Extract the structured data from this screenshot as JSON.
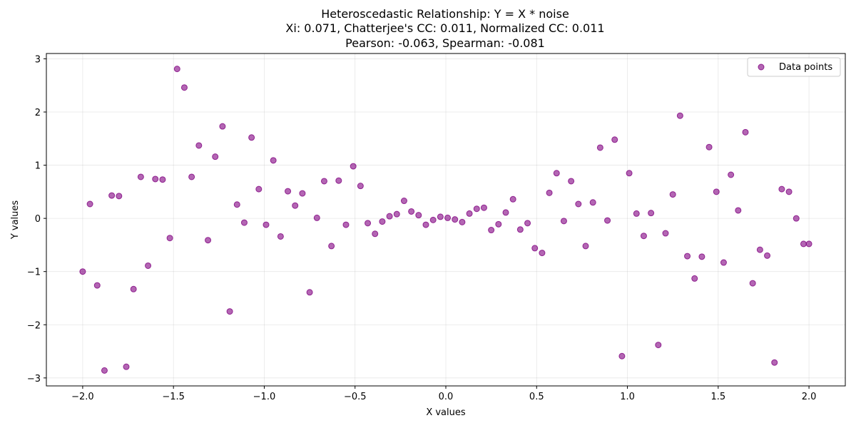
{
  "chart_data": {
    "type": "scatter",
    "title_lines": [
      "Heteroscedastic Relationship: Y = X * noise",
      "Xi: 0.071, Chatterjee's CC: 0.011, Normalized CC: 0.011",
      "Pearson: -0.063, Spearman: -0.081"
    ],
    "xlabel": "X values",
    "ylabel": "Y values",
    "xlim": [
      -2.2,
      2.2
    ],
    "ylim": [
      -3.15,
      3.1
    ],
    "xticks": [
      -2.0,
      -1.5,
      -1.0,
      -0.5,
      0.0,
      0.5,
      1.0,
      1.5,
      2.0
    ],
    "xtick_labels": [
      "−2.0",
      "−1.5",
      "−1.0",
      "−0.5",
      "0.0",
      "0.5",
      "1.0",
      "1.5",
      "2.0"
    ],
    "yticks": [
      -3,
      -2,
      -1,
      0,
      1,
      2,
      3
    ],
    "ytick_labels": [
      "−3",
      "−2",
      "−1",
      "0",
      "1",
      "2",
      "3"
    ],
    "grid": true,
    "legend_position": "top-right",
    "series": [
      {
        "name": "Data points",
        "color": "#800080",
        "x": [
          -2.0,
          -1.96,
          -1.92,
          -1.88,
          -1.84,
          -1.8,
          -1.76,
          -1.72,
          -1.68,
          -1.64,
          -1.6,
          -1.56,
          -1.52,
          -1.48,
          -1.44,
          -1.4,
          -1.36,
          -1.31,
          -1.27,
          -1.23,
          -1.19,
          -1.15,
          -1.11,
          -1.07,
          -1.03,
          -0.99,
          -0.95,
          -0.91,
          -0.87,
          -0.83,
          -0.79,
          -0.75,
          -0.71,
          -0.67,
          -0.63,
          -0.59,
          -0.55,
          -0.51,
          -0.47,
          -0.43,
          -0.39,
          -0.35,
          -0.31,
          -0.27,
          -0.23,
          -0.19,
          -0.15,
          -0.11,
          -0.07,
          -0.03,
          0.01,
          0.05,
          0.09,
          0.13,
          0.17,
          0.21,
          0.25,
          0.29,
          0.33,
          0.37,
          0.41,
          0.45,
          0.49,
          0.53,
          0.57,
          0.61,
          0.65,
          0.69,
          0.73,
          0.77,
          0.81,
          0.85,
          0.89,
          0.93,
          0.97,
          1.01,
          1.05,
          1.09,
          1.13,
          1.17,
          1.21,
          1.25,
          1.29,
          1.33,
          1.37,
          1.41,
          1.45,
          1.49,
          1.53,
          1.57,
          1.61,
          1.65,
          1.69,
          1.73,
          1.77,
          1.81,
          1.85,
          1.89,
          1.93,
          1.97,
          2.0
        ],
        "y": [
          -1.0,
          0.27,
          -1.26,
          -2.86,
          0.43,
          0.42,
          -2.79,
          -1.33,
          0.78,
          -0.89,
          0.74,
          0.73,
          -0.37,
          2.81,
          2.46,
          0.78,
          1.37,
          -0.41,
          1.16,
          1.73,
          -1.75,
          0.26,
          -0.08,
          1.52,
          0.55,
          -0.12,
          1.09,
          -0.34,
          0.51,
          0.24,
          0.47,
          -1.39,
          0.01,
          0.7,
          -0.52,
          0.71,
          -0.12,
          0.98,
          0.61,
          -0.09,
          -0.29,
          -0.06,
          0.04,
          0.08,
          0.33,
          0.13,
          0.06,
          -0.12,
          -0.03,
          0.03,
          0.01,
          -0.02,
          -0.07,
          0.09,
          0.18,
          0.2,
          -0.22,
          -0.11,
          0.11,
          0.36,
          -0.21,
          -0.09,
          -0.56,
          -0.65,
          0.48,
          0.85,
          -0.05,
          0.7,
          0.27,
          -0.52,
          0.3,
          1.33,
          -0.04,
          1.48,
          -2.59,
          0.85,
          0.09,
          -0.33,
          0.1,
          -2.38,
          -0.28,
          0.45,
          1.93,
          -0.71,
          -1.13,
          -0.72,
          1.34,
          0.5,
          -0.83,
          0.82,
          0.15,
          1.62,
          -1.22,
          -0.59,
          -0.7,
          -2.71,
          0.55,
          0.5,
          0.0,
          -0.48,
          -0.48
        ]
      }
    ]
  }
}
